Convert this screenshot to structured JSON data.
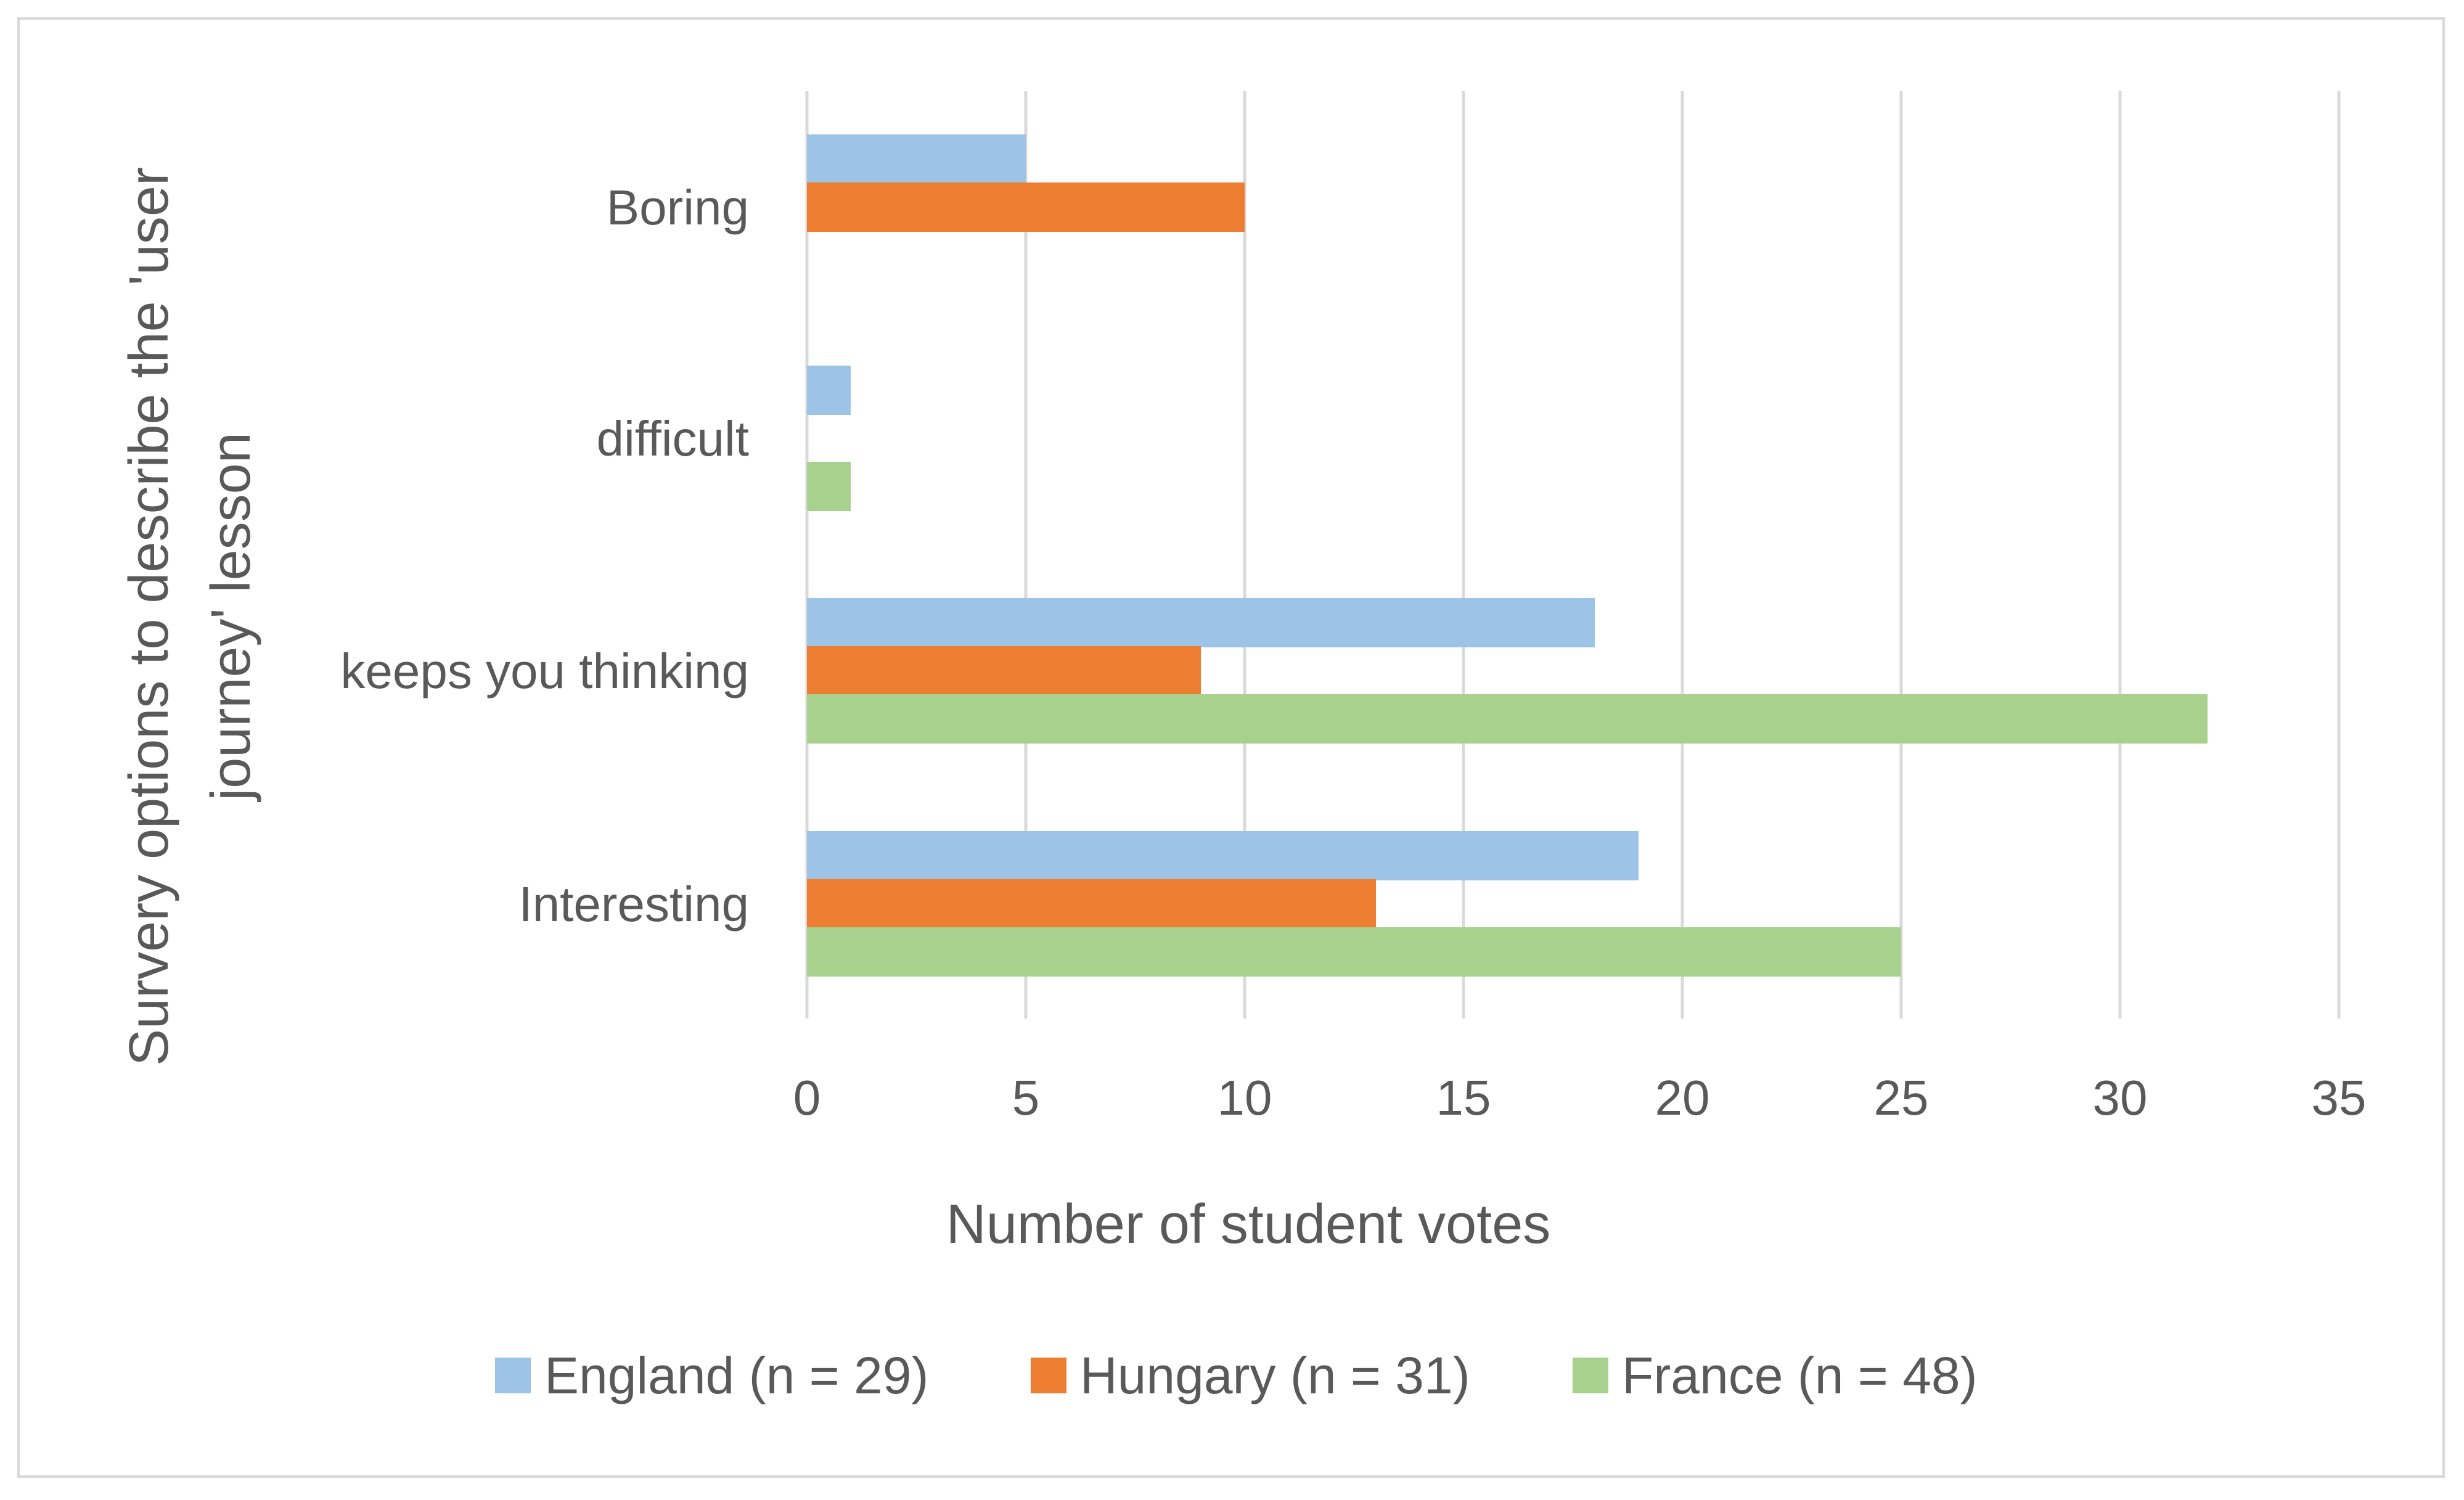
{
  "chart_data": {
    "type": "bar",
    "orientation": "horizontal",
    "categories": [
      "Boring",
      "difficult",
      "keeps you thinking",
      "Interesting"
    ],
    "series": [
      {
        "name": "England (n = 29)",
        "color": "#9dc3e6",
        "values": [
          5,
          1,
          18,
          19
        ]
      },
      {
        "name": "Hungary (n = 31)",
        "color": "#ed7d31",
        "values": [
          10,
          0,
          9,
          13
        ]
      },
      {
        "name": "France (n = 48)",
        "color": "#a9d18e",
        "values": [
          0,
          1,
          32,
          25
        ]
      }
    ],
    "xlabel": "Number of student votes",
    "ylabel_lines": [
      "Survery options to describe the 'user",
      "journey' lesson"
    ],
    "xlim": [
      0,
      35
    ],
    "xticks": [
      "0",
      "5",
      "10",
      "15",
      "20",
      "25",
      "30",
      "35"
    ],
    "grid": "vertical",
    "legend_position": "bottom"
  }
}
